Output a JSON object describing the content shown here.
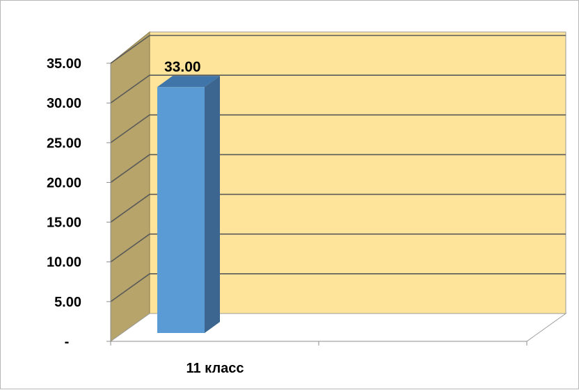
{
  "chart_data": {
    "type": "bar",
    "categories": [
      "11 класс"
    ],
    "series": [
      {
        "values": [
          33.0
        ],
        "data_labels": [
          "33.00"
        ]
      }
    ],
    "yticks": [
      {
        "value": 0,
        "label": "-"
      },
      {
        "value": 5,
        "label": "5.00"
      },
      {
        "value": 10,
        "label": "10.00"
      },
      {
        "value": 15,
        "label": "15.00"
      },
      {
        "value": 20,
        "label": "20.00"
      },
      {
        "value": 25,
        "label": "25.00"
      },
      {
        "value": 30,
        "label": "30.00"
      },
      {
        "value": 35,
        "label": "35.00"
      }
    ],
    "ylim": [
      0,
      35
    ],
    "grid": true,
    "legend": "none",
    "three_d": true,
    "colors": {
      "wall": "#fde49a",
      "side_wall": "#b6a46a",
      "floor": "#ffffff",
      "gridline": "#595959",
      "bar_front": "#5b9bd5",
      "bar_top": "#3f75a8",
      "bar_side": "#3c6690"
    }
  }
}
